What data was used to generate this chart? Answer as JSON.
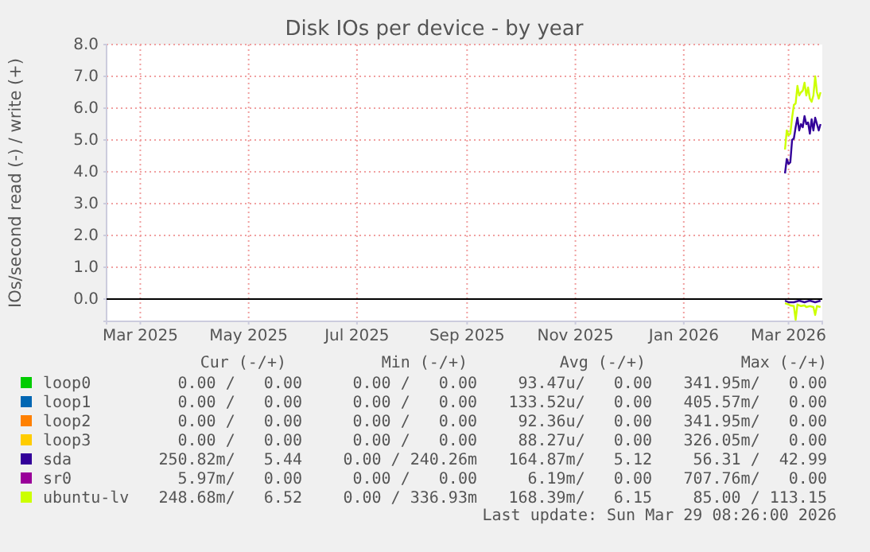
{
  "chart_data": {
    "type": "line",
    "title": "Disk IOs per device - by year",
    "ylabel": "IOs/second read (-) / write (+)",
    "xlim": [
      "2025-02-10",
      "2026-03-20"
    ],
    "xticks": [
      {
        "value": "2025-03-01",
        "label": "Mar 2025"
      },
      {
        "value": "2025-05-01",
        "label": "May 2025"
      },
      {
        "value": "2025-07-01",
        "label": "Jul 2025"
      },
      {
        "value": "2025-09-01",
        "label": "Sep 2025"
      },
      {
        "value": "2025-11-01",
        "label": "Nov 2025"
      },
      {
        "value": "2026-01-01",
        "label": "Jan 2026"
      },
      {
        "value": "2026-03-01",
        "label": "Mar 2026"
      }
    ],
    "ylim": [
      -0.7,
      8.0
    ],
    "yticks": [
      {
        "value": 0,
        "label": "0.0"
      },
      {
        "value": 1,
        "label": "1.0"
      },
      {
        "value": 2,
        "label": "2.0"
      },
      {
        "value": 3,
        "label": "3.0"
      },
      {
        "value": 4,
        "label": "4.0"
      },
      {
        "value": 5,
        "label": "5.0"
      },
      {
        "value": 6,
        "label": "6.0"
      },
      {
        "value": 7,
        "label": "7.0"
      },
      {
        "value": 8,
        "label": "8.0"
      }
    ],
    "grid": true,
    "legend": "bottom",
    "ref_lines": [
      {
        "axis": "y",
        "value": 0,
        "color": "#000000"
      }
    ],
    "series": [
      {
        "name": "loop0",
        "color": "#00cc00"
      },
      {
        "name": "loop1",
        "color": "#0066b3"
      },
      {
        "name": "loop2",
        "color": "#ff8000"
      },
      {
        "name": "loop3",
        "color": "#ffcc00"
      },
      {
        "name": "sda",
        "color": "#330099",
        "x": [
          "2026-02-27",
          "2026-02-28",
          "2026-03-01",
          "2026-03-02",
          "2026-03-03",
          "2026-03-04",
          "2026-03-05",
          "2026-03-06",
          "2026-03-07",
          "2026-03-08",
          "2026-03-09",
          "2026-03-10",
          "2026-03-11",
          "2026-03-12",
          "2026-03-13",
          "2026-03-14",
          "2026-03-15",
          "2026-03-16",
          "2026-03-17",
          "2026-03-18",
          "2026-03-19"
        ],
        "values": [
          3.95,
          4.4,
          4.25,
          4.3,
          5.0,
          5.05,
          5.4,
          5.7,
          5.3,
          5.5,
          5.4,
          5.75,
          5.5,
          5.55,
          5.2,
          5.65,
          5.3,
          5.7,
          5.5,
          5.3,
          5.5
        ]
      },
      {
        "name": "sr0",
        "color": "#990099"
      },
      {
        "name": "ubuntu-lv",
        "color": "#ccff00",
        "x": [
          "2026-02-27",
          "2026-02-28",
          "2026-03-01",
          "2026-03-02",
          "2026-03-03",
          "2026-03-04",
          "2026-03-05",
          "2026-03-06",
          "2026-03-07",
          "2026-03-08",
          "2026-03-09",
          "2026-03-10",
          "2026-03-11",
          "2026-03-12",
          "2026-03-13",
          "2026-03-14",
          "2026-03-15",
          "2026-03-16",
          "2026-03-17",
          "2026-03-18",
          "2026-03-19"
        ],
        "values": [
          4.7,
          5.3,
          5.15,
          5.2,
          5.7,
          6.1,
          6.15,
          6.7,
          6.4,
          6.5,
          6.55,
          6.8,
          6.4,
          6.65,
          6.3,
          6.2,
          6.4,
          7.0,
          6.5,
          6.3,
          6.5
        ]
      },
      {
        "color": "#330099",
        "x": [
          "2026-02-27",
          "2026-03-01",
          "2026-03-04",
          "2026-03-07",
          "2026-03-10",
          "2026-03-13",
          "2026-03-16",
          "2026-03-19"
        ],
        "values": [
          -0.05,
          -0.1,
          -0.1,
          -0.05,
          -0.1,
          -0.05,
          -0.1,
          -0.05
        ]
      },
      {
        "color": "#ccff00",
        "x": [
          "2026-02-27",
          "2026-03-01",
          "2026-03-02",
          "2026-03-04",
          "2026-03-05",
          "2026-03-06",
          "2026-03-08",
          "2026-03-10",
          "2026-03-11",
          "2026-03-13",
          "2026-03-15",
          "2026-03-16",
          "2026-03-17",
          "2026-03-19"
        ],
        "values": [
          -0.13,
          -0.17,
          -0.2,
          -0.22,
          -0.65,
          -0.17,
          -0.22,
          -0.2,
          -0.25,
          -0.22,
          -0.25,
          -0.5,
          -0.22,
          -0.25
        ]
      }
    ],
    "annotations": [
      "Cur (-/+)",
      "Min (-/+)",
      "Avg (-/+)",
      "Max (-/+)",
      "0.00 /   0.00",
      "0.00 /   0.00",
      "93.47u/   0.00",
      "341.95m/   0.00",
      "0.00 /   0.00",
      "0.00 /   0.00",
      "133.52u/   0.00",
      "405.57m/   0.00",
      "0.00 /   0.00",
      "0.00 /   0.00",
      "92.36u/   0.00",
      "341.95m/   0.00",
      "0.00 /   0.00",
      "0.00 /   0.00",
      "88.27u/   0.00",
      "326.05m/   0.00",
      "250.82m/   5.44",
      "0.00 / 240.26m",
      "164.87m/   5.12",
      "56.31 /  42.99",
      "5.97m/   0.00",
      "0.00 /   0.00",
      "6.19m/   0.00",
      "707.76m/   0.00",
      "248.68m/   6.52",
      "0.00 / 336.93m",
      "168.39m/   6.15",
      "85.00 / 113.15",
      "Last update: Sun Mar 29 08:26:00 2026"
    ]
  }
}
